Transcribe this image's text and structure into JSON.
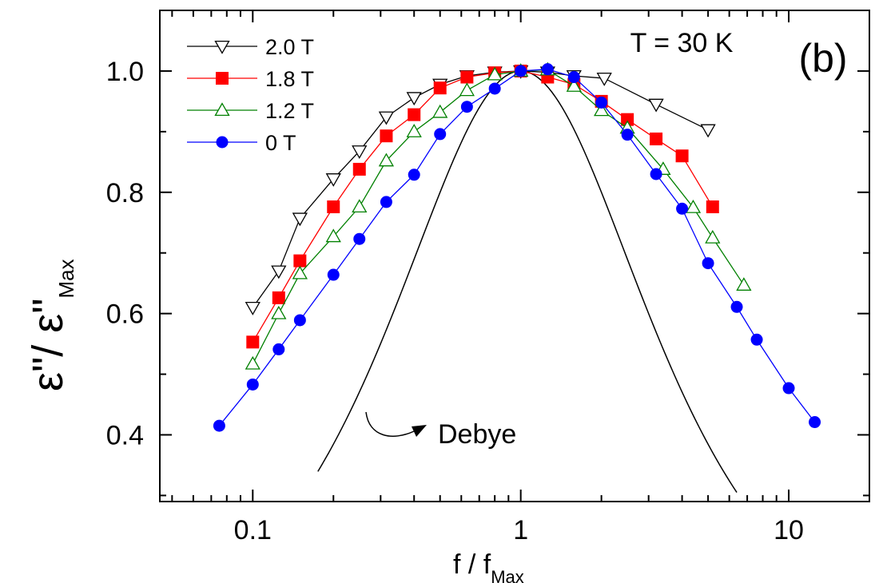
{
  "chart_data": {
    "type": "line",
    "x_scale": "log",
    "x": [
      0.075,
      0.1,
      0.125,
      0.15,
      0.2,
      0.25,
      0.3,
      0.375,
      0.5,
      0.63,
      0.8,
      1.0,
      1.26,
      1.58,
      2.0,
      2.5,
      3.15,
      3.9,
      5.0,
      5.2,
      6.5,
      6.8,
      7.6,
      10.0,
      12.5
    ],
    "xlim": [
      0.045,
      20
    ],
    "ylim": [
      0.29,
      1.1
    ],
    "xticks": [
      0.1,
      1,
      10
    ],
    "xtick_labels": [
      "0.1",
      "1",
      "10"
    ],
    "yticks": [
      0.4,
      0.6,
      0.8,
      1.0
    ],
    "ytick_labels": [
      "0.4",
      "0.6",
      "0.8",
      "1.0"
    ],
    "xlabel": {
      "main": "f / f",
      "sub": "Max"
    },
    "ylabel": {
      "main": "ε\"/ ε\"",
      "sub": "Max"
    },
    "series": [
      {
        "name": "2.0 T",
        "color": "#000000",
        "marker": "triangle-down-open",
        "points": [
          [
            0.1,
            0.61
          ],
          [
            0.125,
            0.67
          ],
          [
            0.15,
            0.757
          ],
          [
            0.2,
            0.822
          ],
          [
            0.25,
            0.868
          ],
          [
            0.315,
            0.924
          ],
          [
            0.4,
            0.956
          ],
          [
            0.5,
            0.978
          ],
          [
            0.63,
            0.992
          ],
          [
            0.8,
            0.998
          ],
          [
            1.0,
            1.0
          ],
          [
            1.26,
            0.998
          ],
          [
            1.58,
            0.992
          ],
          [
            2.05,
            0.988
          ],
          [
            3.2,
            0.945
          ],
          [
            5.0,
            0.903
          ]
        ]
      },
      {
        "name": "1.8 T",
        "color": "#ff0000",
        "marker": "square-filled",
        "points": [
          [
            0.1,
            0.553
          ],
          [
            0.125,
            0.626
          ],
          [
            0.15,
            0.687
          ],
          [
            0.2,
            0.776
          ],
          [
            0.25,
            0.838
          ],
          [
            0.315,
            0.893
          ],
          [
            0.4,
            0.928
          ],
          [
            0.5,
            0.972
          ],
          [
            0.63,
            0.99
          ],
          [
            0.8,
            0.997
          ],
          [
            1.0,
            1.0
          ],
          [
            1.26,
            0.99
          ],
          [
            1.58,
            0.978
          ],
          [
            2.0,
            0.95
          ],
          [
            2.5,
            0.92
          ],
          [
            3.2,
            0.888
          ],
          [
            4.0,
            0.86
          ],
          [
            5.2,
            0.776
          ]
        ]
      },
      {
        "name": "1.2 T",
        "color": "#008000",
        "marker": "triangle-up-open",
        "points": [
          [
            0.1,
            0.517
          ],
          [
            0.125,
            0.6
          ],
          [
            0.15,
            0.666
          ],
          [
            0.2,
            0.727
          ],
          [
            0.25,
            0.776
          ],
          [
            0.315,
            0.852
          ],
          [
            0.4,
            0.9
          ],
          [
            0.5,
            0.932
          ],
          [
            0.63,
            0.968
          ],
          [
            0.8,
            0.994
          ],
          [
            1.0,
            1.0
          ],
          [
            1.26,
            1.002
          ],
          [
            1.58,
            0.975
          ],
          [
            2.0,
            0.935
          ],
          [
            2.5,
            0.906
          ],
          [
            3.4,
            0.838
          ],
          [
            4.4,
            0.775
          ],
          [
            5.2,
            0.725
          ],
          [
            6.8,
            0.647
          ]
        ]
      },
      {
        "name": "0 T",
        "color": "#0000ff",
        "marker": "circle-filled",
        "points": [
          [
            0.075,
            0.415
          ],
          [
            0.1,
            0.483
          ],
          [
            0.125,
            0.541
          ],
          [
            0.15,
            0.589
          ],
          [
            0.2,
            0.664
          ],
          [
            0.25,
            0.723
          ],
          [
            0.315,
            0.784
          ],
          [
            0.4,
            0.829
          ],
          [
            0.5,
            0.896
          ],
          [
            0.63,
            0.941
          ],
          [
            0.8,
            0.971
          ],
          [
            1.0,
            1.0
          ],
          [
            1.26,
            1.003
          ],
          [
            1.58,
            0.99
          ],
          [
            2.0,
            0.948
          ],
          [
            2.5,
            0.895
          ],
          [
            3.2,
            0.83
          ],
          [
            4.0,
            0.773
          ],
          [
            5.0,
            0.683
          ],
          [
            6.4,
            0.611
          ],
          [
            7.6,
            0.557
          ],
          [
            10.0,
            0.477
          ],
          [
            12.5,
            0.421
          ]
        ]
      }
    ],
    "reference_curve": {
      "name": "Debye",
      "color": "#000000",
      "x_range": [
        0.175,
        6.4
      ]
    },
    "legend": {
      "position": "top-left"
    },
    "annotations": {
      "temperature": "T = 30 K",
      "panel": "(b)",
      "debye_label": "Debye"
    }
  }
}
